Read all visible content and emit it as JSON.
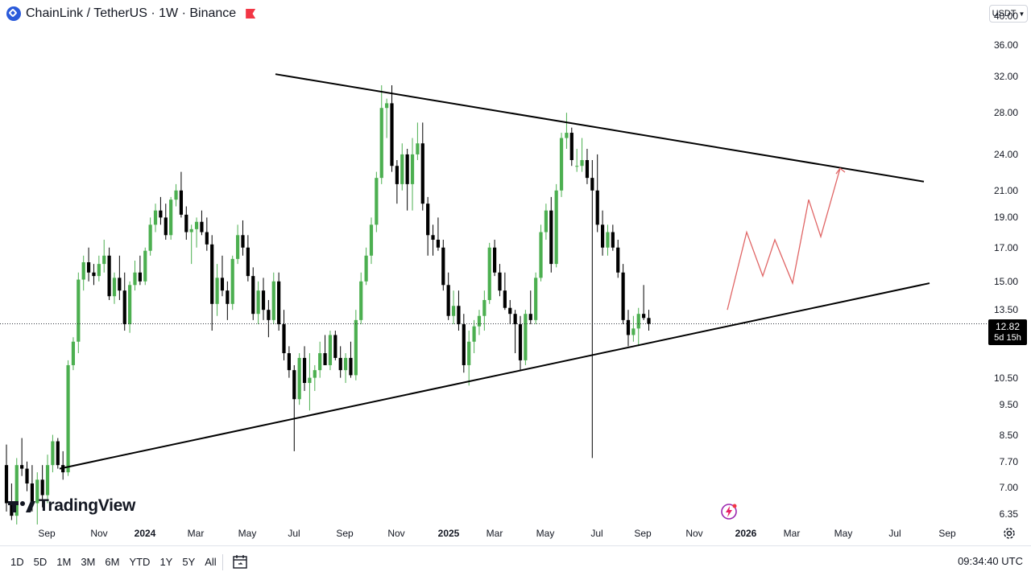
{
  "header": {
    "title": "ChainLink / TetherUS · 1W · Binance",
    "currency": "USDT"
  },
  "footer": {
    "ranges": [
      "1D",
      "5D",
      "1M",
      "3M",
      "6M",
      "YTD",
      "1Y",
      "5Y",
      "All"
    ],
    "clock": "09:34:40 UTC"
  },
  "branding": {
    "logo_text": "TradingView"
  },
  "colors": {
    "up": "#4caf50",
    "down": "#000000",
    "trendline": "#000000",
    "projection": "#e06666"
  },
  "price_badge": {
    "price": "12.82",
    "countdown": "5d 15h"
  },
  "chart_data": {
    "type": "candlestick",
    "symbol": "LINK/USDT",
    "interval": "1W",
    "exchange": "Binance",
    "y_scale": "log",
    "ylim": [
      6.1,
      42.5
    ],
    "y_ticks": [
      "40.00",
      "36.00",
      "32.00",
      "28.00",
      "24.00",
      "21.00",
      "19.00",
      "17.00",
      "15.00",
      "13.50",
      "12.00",
      "10.50",
      "9.50",
      "8.50",
      "7.70",
      "7.00",
      "6.35"
    ],
    "x_ticks": [
      "Sep",
      "Nov",
      "2024",
      "Mar",
      "May",
      "Jul",
      "Sep",
      "Nov",
      "2025",
      "Mar",
      "May",
      "Jul",
      "Sep",
      "Nov",
      "2026",
      "Mar",
      "May",
      "Jul",
      "Sep"
    ],
    "last_price": 12.82,
    "candles": [
      [
        7.6,
        8.2,
        6.4,
        6.6
      ],
      [
        6.6,
        7.1,
        6.2,
        6.3
      ],
      [
        6.3,
        7.8,
        6.1,
        7.6
      ],
      [
        7.6,
        8.4,
        7.3,
        7.5
      ],
      [
        7.5,
        7.7,
        6.9,
        7.1
      ],
      [
        7.1,
        7.6,
        6.4,
        6.6
      ],
      [
        6.6,
        7.4,
        6.1,
        7.2
      ],
      [
        7.2,
        7.6,
        6.5,
        6.8
      ],
      [
        6.8,
        7.9,
        6.6,
        7.6
      ],
      [
        7.6,
        8.5,
        7.4,
        8.3
      ],
      [
        8.3,
        8.4,
        7.5,
        7.6
      ],
      [
        7.6,
        8.0,
        7.2,
        7.4
      ],
      [
        7.4,
        11.2,
        7.3,
        11.0
      ],
      [
        11.0,
        12.2,
        10.8,
        12.0
      ],
      [
        12.0,
        15.5,
        11.5,
        15.1
      ],
      [
        15.1,
        16.5,
        14.5,
        16.1
      ],
      [
        16.1,
        17.0,
        15.0,
        15.5
      ],
      [
        15.5,
        16.0,
        14.8,
        15.3
      ],
      [
        15.3,
        16.5,
        15.0,
        16.0
      ],
      [
        16.0,
        17.5,
        15.5,
        16.5
      ],
      [
        16.5,
        17.0,
        14.0,
        14.2
      ],
      [
        14.2,
        15.5,
        13.8,
        15.2
      ],
      [
        15.2,
        16.5,
        14.0,
        14.5
      ],
      [
        14.5,
        15.5,
        12.5,
        12.8
      ],
      [
        12.8,
        15.0,
        12.4,
        14.8
      ],
      [
        14.8,
        16.2,
        14.5,
        15.5
      ],
      [
        15.5,
        16.5,
        14.8,
        15.0
      ],
      [
        15.0,
        17.0,
        14.8,
        16.8
      ],
      [
        16.8,
        19.0,
        16.5,
        18.5
      ],
      [
        18.5,
        20.0,
        18.0,
        19.5
      ],
      [
        19.5,
        20.5,
        18.5,
        19.0
      ],
      [
        19.0,
        20.0,
        17.5,
        17.8
      ],
      [
        17.8,
        20.5,
        17.5,
        20.3
      ],
      [
        20.3,
        21.5,
        19.8,
        21.0
      ],
      [
        21.0,
        22.5,
        19.0,
        19.2
      ],
      [
        19.2,
        19.8,
        17.5,
        18.0
      ],
      [
        18.0,
        18.5,
        16.0,
        18.2
      ],
      [
        18.2,
        19.0,
        17.0,
        18.7
      ],
      [
        18.7,
        19.5,
        17.8,
        18.0
      ],
      [
        18.0,
        19.0,
        16.8,
        17.2
      ],
      [
        17.2,
        17.8,
        12.5,
        13.8
      ],
      [
        13.8,
        16.0,
        13.2,
        15.2
      ],
      [
        15.2,
        16.5,
        14.2,
        14.5
      ],
      [
        14.5,
        15.0,
        13.0,
        13.8
      ],
      [
        13.8,
        16.5,
        13.5,
        16.3
      ],
      [
        16.3,
        18.5,
        16.0,
        17.8
      ],
      [
        17.8,
        18.8,
        16.5,
        17.0
      ],
      [
        17.0,
        17.8,
        15.0,
        15.3
      ],
      [
        15.3,
        15.8,
        13.0,
        13.3
      ],
      [
        13.3,
        15.0,
        12.8,
        14.5
      ],
      [
        14.5,
        15.2,
        13.0,
        13.5
      ],
      [
        13.5,
        14.0,
        12.2,
        13.0
      ],
      [
        13.0,
        15.5,
        12.8,
        15.0
      ],
      [
        15.0,
        15.5,
        12.5,
        12.8
      ],
      [
        12.8,
        13.5,
        11.2,
        11.5
      ],
      [
        11.5,
        11.8,
        10.5,
        10.8
      ],
      [
        10.8,
        11.0,
        8.0,
        9.7
      ],
      [
        9.7,
        11.5,
        9.5,
        11.3
      ],
      [
        11.3,
        11.8,
        10.0,
        10.3
      ],
      [
        10.3,
        11.5,
        9.3,
        10.5
      ],
      [
        10.5,
        11.0,
        10.0,
        10.8
      ],
      [
        10.8,
        12.0,
        10.5,
        11.5
      ],
      [
        11.5,
        12.3,
        11.0,
        11.0
      ],
      [
        11.0,
        12.5,
        10.8,
        12.3
      ],
      [
        12.3,
        12.5,
        11.2,
        11.3
      ],
      [
        11.3,
        11.8,
        10.5,
        10.8
      ],
      [
        10.8,
        11.5,
        10.3,
        11.3
      ],
      [
        11.3,
        12.0,
        10.5,
        10.6
      ],
      [
        10.6,
        13.5,
        10.4,
        13.0
      ],
      [
        13.0,
        15.5,
        12.8,
        15.0
      ],
      [
        15.0,
        17.0,
        14.8,
        16.5
      ],
      [
        16.5,
        19.0,
        16.0,
        18.5
      ],
      [
        18.5,
        22.5,
        18.0,
        22.0
      ],
      [
        22.0,
        31.0,
        21.5,
        28.5
      ],
      [
        28.5,
        29.5,
        25.5,
        29.0
      ],
      [
        29.0,
        31.0,
        22.5,
        23.0
      ],
      [
        23.0,
        23.5,
        20.0,
        21.5
      ],
      [
        21.5,
        25.0,
        21.0,
        24.0
      ],
      [
        24.0,
        24.5,
        19.5,
        21.5
      ],
      [
        21.5,
        25.5,
        19.5,
        24.0
      ],
      [
        24.0,
        27.0,
        23.5,
        25.0
      ],
      [
        25.0,
        27.0,
        19.5,
        20.0
      ],
      [
        20.0,
        20.5,
        16.5,
        17.8
      ],
      [
        17.8,
        18.5,
        16.5,
        17.5
      ],
      [
        17.5,
        19.0,
        16.8,
        17.0
      ],
      [
        17.0,
        17.5,
        14.5,
        14.8
      ],
      [
        14.8,
        15.5,
        13.0,
        13.2
      ],
      [
        13.2,
        14.5,
        12.8,
        13.7
      ],
      [
        13.7,
        14.5,
        12.5,
        12.8
      ],
      [
        12.8,
        13.3,
        10.7,
        11.0
      ],
      [
        11.0,
        12.5,
        10.2,
        12.0
      ],
      [
        12.0,
        13.0,
        11.5,
        12.7
      ],
      [
        12.7,
        13.5,
        12.3,
        13.2
      ],
      [
        13.2,
        14.5,
        12.5,
        14.0
      ],
      [
        14.0,
        17.3,
        13.8,
        17.0
      ],
      [
        17.0,
        17.5,
        15.3,
        15.5
      ],
      [
        15.5,
        16.0,
        14.2,
        14.5
      ],
      [
        14.5,
        15.5,
        13.5,
        13.6
      ],
      [
        13.6,
        14.0,
        12.8,
        13.3
      ],
      [
        13.3,
        13.5,
        11.5,
        12.8
      ],
      [
        12.8,
        13.2,
        10.8,
        11.2
      ],
      [
        11.2,
        13.5,
        11.0,
        13.3
      ],
      [
        13.3,
        14.5,
        12.8,
        13.0
      ],
      [
        13.0,
        15.5,
        12.8,
        15.2
      ],
      [
        15.2,
        18.5,
        15.0,
        18.0
      ],
      [
        18.0,
        20.0,
        17.5,
        19.5
      ],
      [
        19.5,
        20.5,
        15.5,
        16.0
      ],
      [
        16.0,
        21.5,
        15.8,
        21.0
      ],
      [
        21.0,
        26.0,
        20.5,
        25.5
      ],
      [
        25.5,
        28.0,
        24.5,
        26.0
      ],
      [
        26.0,
        26.5,
        23.0,
        23.5
      ],
      [
        23.0,
        24.5,
        22.5,
        23.0
      ],
      [
        23.0,
        25.5,
        22.5,
        23.5
      ],
      [
        23.5,
        24.5,
        21.5,
        22.0
      ],
      [
        22.0,
        23.5,
        7.8,
        21.0
      ],
      [
        21.0,
        24.0,
        18.0,
        18.5
      ],
      [
        18.5,
        19.5,
        16.5,
        17.0
      ],
      [
        17.0,
        18.5,
        16.5,
        18.0
      ],
      [
        18.0,
        18.5,
        16.8,
        17.0
      ],
      [
        17.0,
        17.5,
        15.2,
        15.5
      ],
      [
        15.5,
        16.0,
        12.8,
        13.0
      ],
      [
        13.0,
        13.5,
        11.8,
        12.3
      ],
      [
        12.3,
        13.2,
        12.0,
        12.6
      ],
      [
        12.6,
        13.6,
        11.8,
        13.3
      ],
      [
        13.3,
        14.8,
        13.0,
        13.1
      ],
      [
        13.1,
        13.5,
        12.5,
        12.82
      ]
    ],
    "trendlines": [
      {
        "name": "resistance",
        "points": [
          [
            "2024-06",
            32.3
          ],
          [
            "2025-12-end",
            21.7
          ]
        ]
      },
      {
        "name": "support",
        "points": [
          [
            "2023-10",
            7.5
          ],
          [
            "2026-09",
            14.9
          ]
        ]
      }
    ],
    "projection": {
      "style": "zigzag arrow",
      "points": [
        13.5,
        18.0,
        15.3,
        17.5,
        14.9,
        20.3,
        17.7,
        22.8
      ]
    }
  }
}
